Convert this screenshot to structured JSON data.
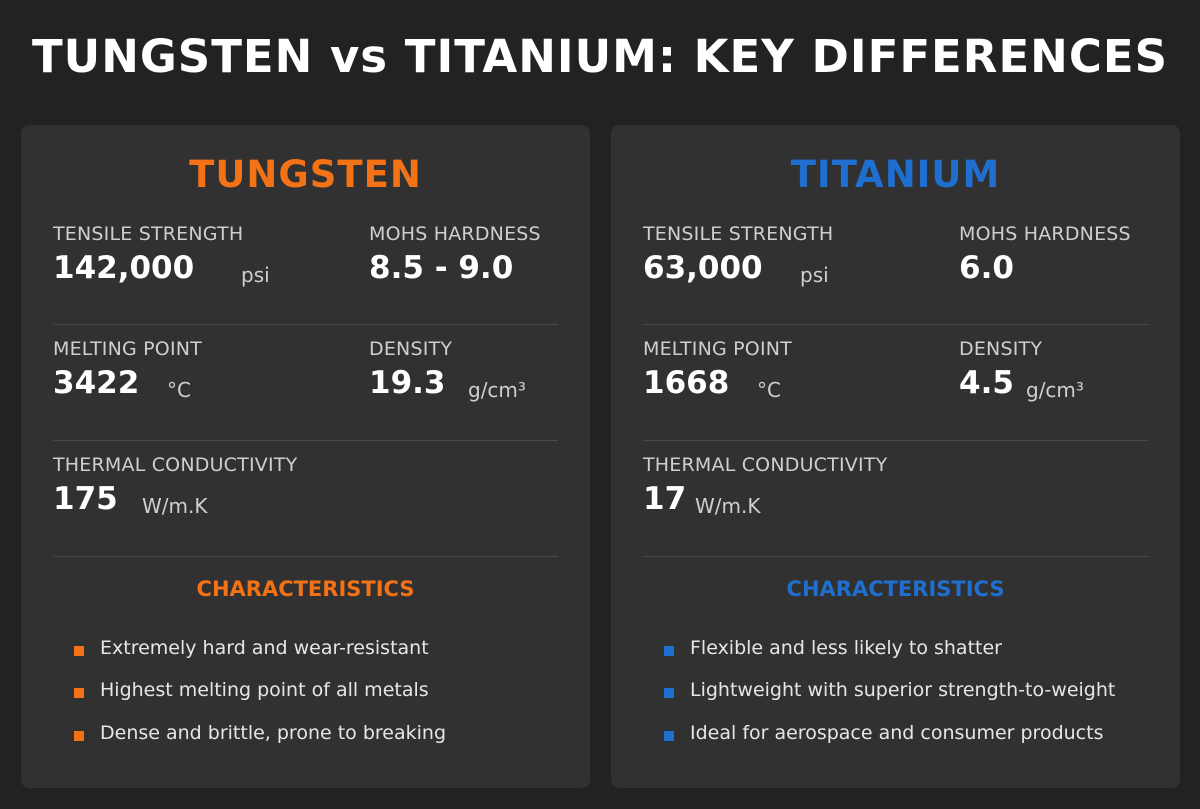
{
  "title": "TUNGSTEN vs TITANIUM: KEY DIFFERENCES",
  "colors": {
    "tungsten_accent": "#f47216",
    "titanium_accent": "#1f6fd0",
    "background": "#222222",
    "card": "#313131"
  },
  "tungsten": {
    "name": "TUNGSTEN",
    "tensile_strength": {
      "label": "TENSILE STRENGTH",
      "value": "142,000",
      "unit": "psi"
    },
    "mohs_hardness": {
      "label": "MOHS HARDNESS",
      "value": "8.5 - 9.0"
    },
    "melting_point": {
      "label": "MELTING POINT",
      "value": "3422",
      "unit": "°C"
    },
    "density": {
      "label": "DENSITY",
      "value": "19.3",
      "unit": "g/cm³"
    },
    "thermal_conductivity": {
      "label": "THERMAL CONDUCTIVITY",
      "value": "175",
      "unit": "W/m.K"
    },
    "characteristics_heading": "CHARACTERISTICS",
    "characteristics": [
      "Extremely hard and wear-resistant",
      "Highest melting point of all metals",
      "Dense and brittle, prone to breaking"
    ]
  },
  "titanium": {
    "name": "TITANIUM",
    "tensile_strength": {
      "label": "TENSILE STRENGTH",
      "value": "63,000",
      "unit": "psi"
    },
    "mohs_hardness": {
      "label": "MOHS HARDNESS",
      "value": "6.0"
    },
    "melting_point": {
      "label": "MELTING POINT",
      "value": "1668",
      "unit": "°C"
    },
    "density": {
      "label": "DENSITY",
      "value": "4.5",
      "unit": "g/cm³"
    },
    "thermal_conductivity": {
      "label": "THERMAL CONDUCTIVITY",
      "value": "17",
      "unit": "W/m.K"
    },
    "characteristics_heading": "CHARACTERISTICS",
    "characteristics": [
      "Flexible and less likely to shatter",
      "Lightweight with superior strength-to-weight",
      "Ideal for aerospace and consumer products"
    ]
  }
}
